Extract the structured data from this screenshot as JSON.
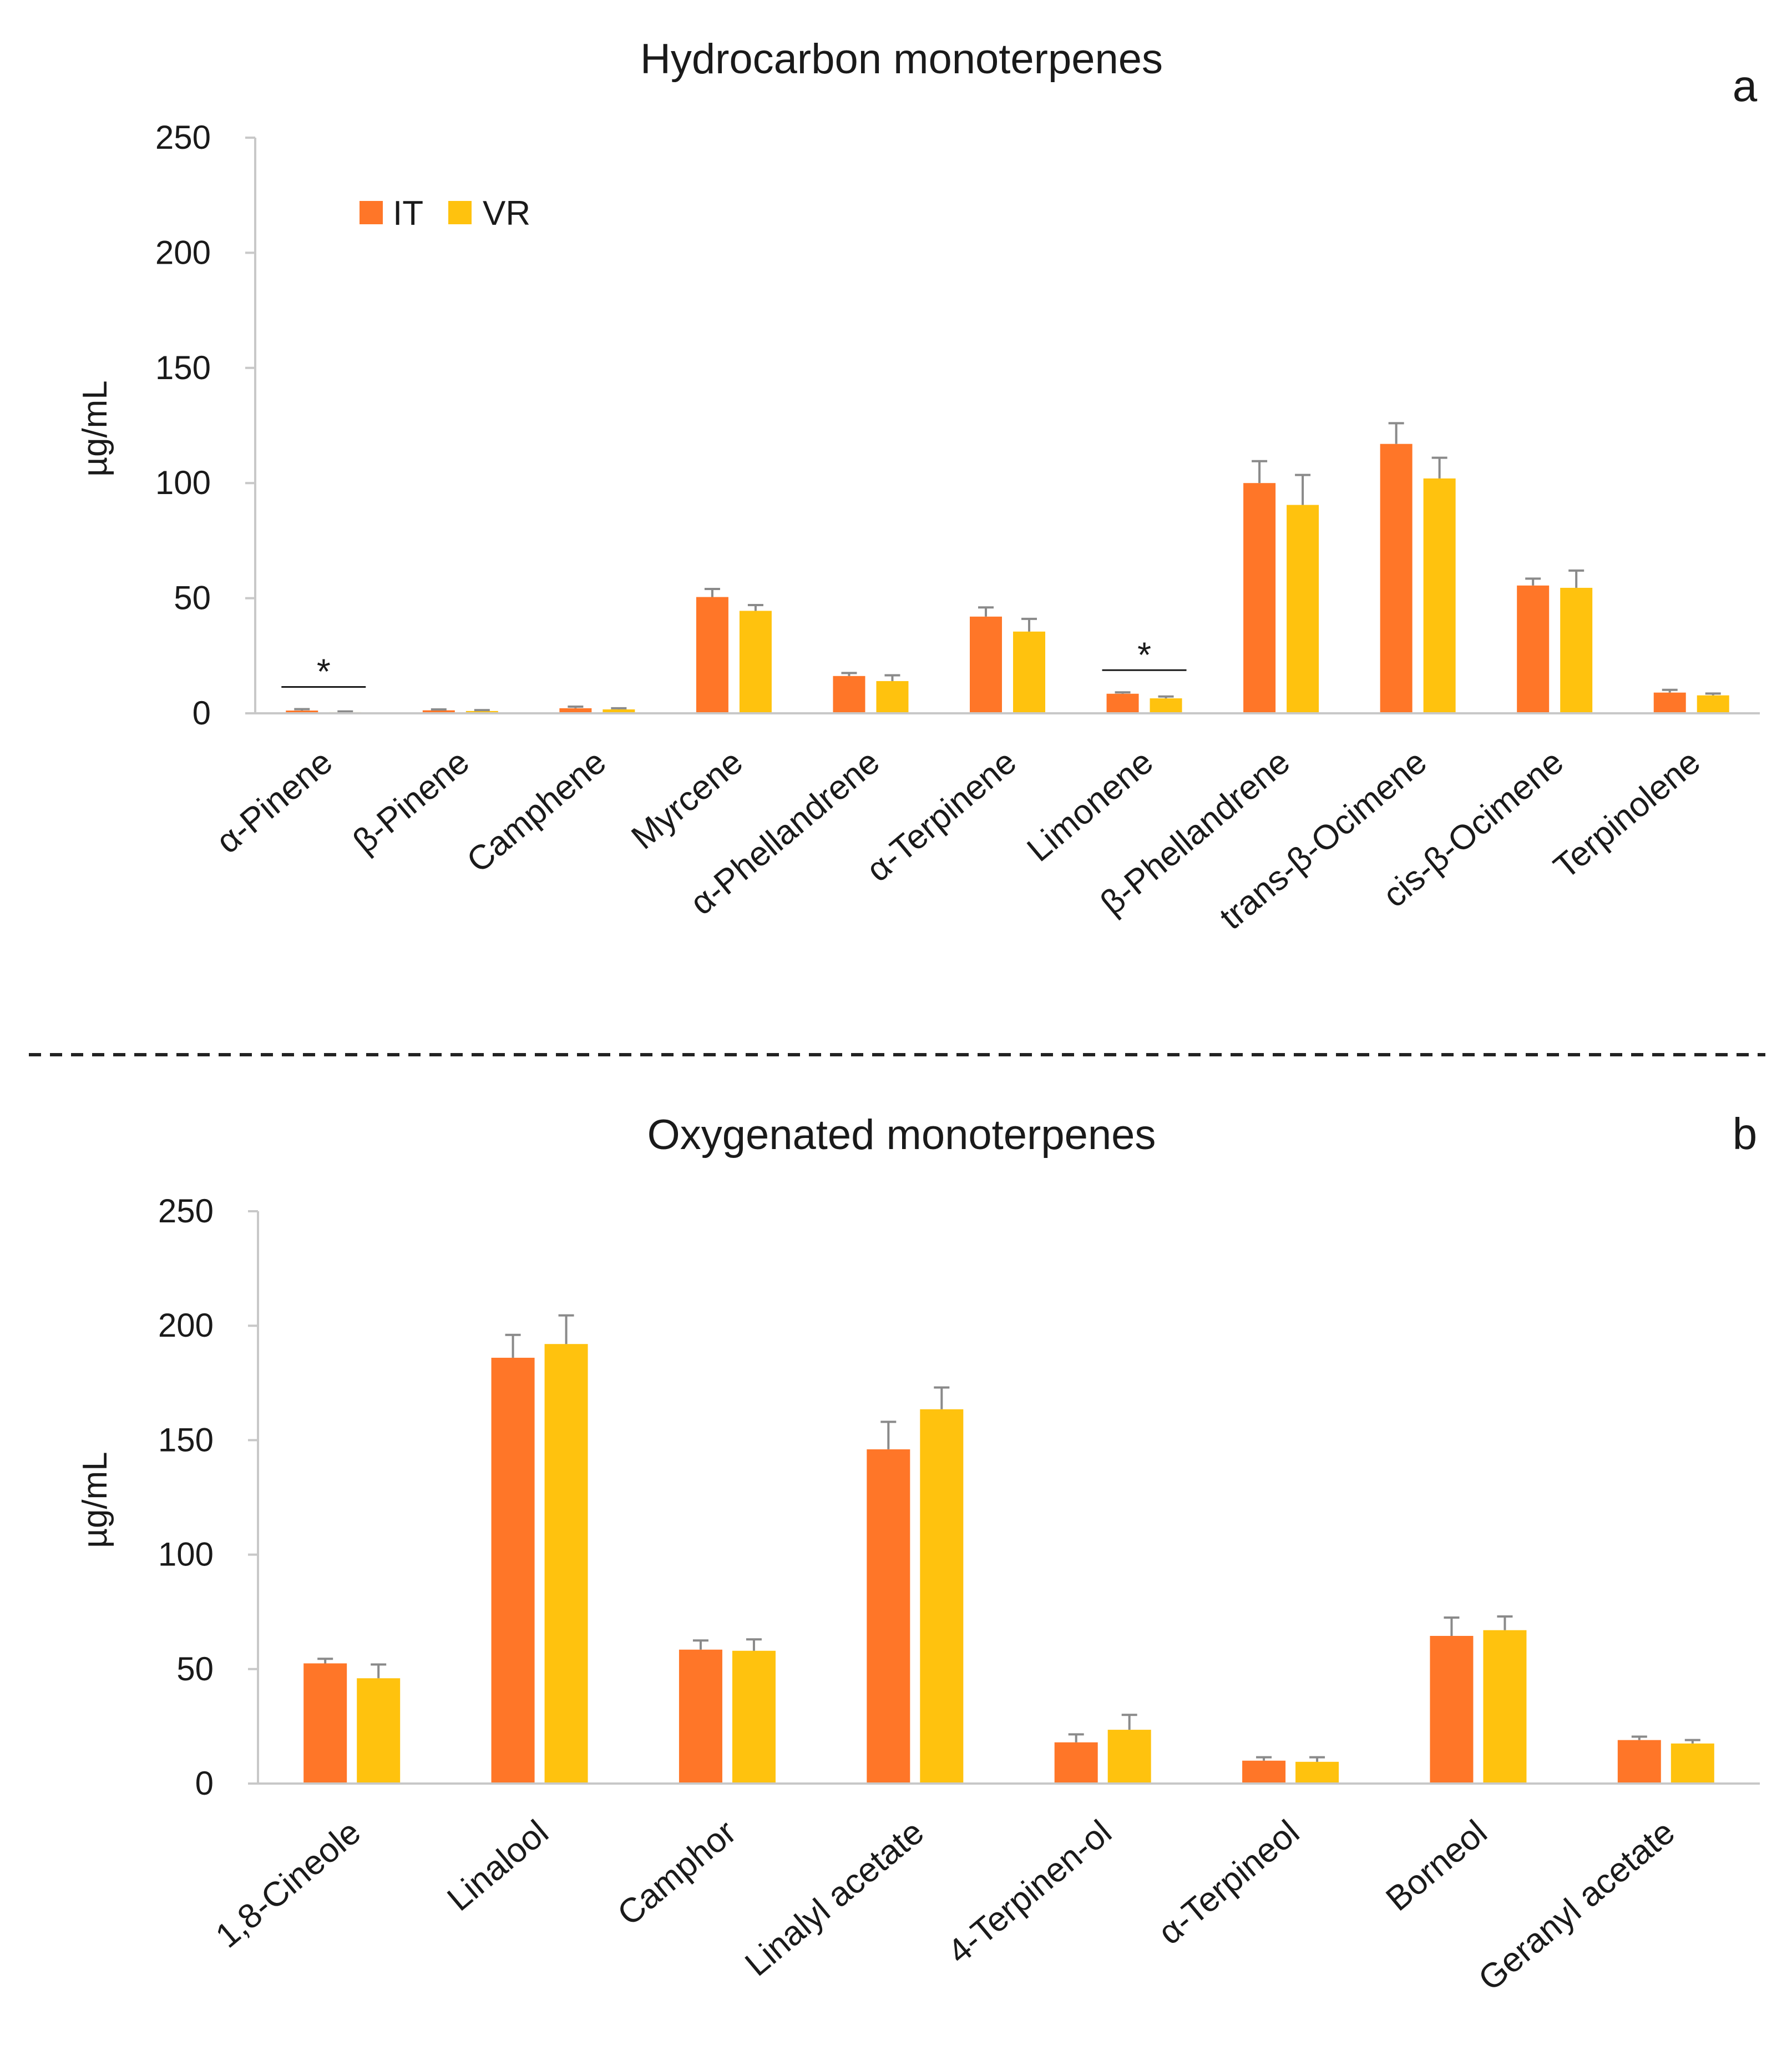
{
  "colors": {
    "IT": "#ff7628",
    "VR": "#ffc20e",
    "axis": "#c8c8c8",
    "error": "#8a8a8a",
    "text": "#1a1a1a"
  },
  "legend": {
    "IT": "IT",
    "VR": "VR",
    "placement": "top-left"
  },
  "divider": {
    "style": "dashed"
  },
  "chart_data": [
    {
      "type": "bar",
      "panel": "a",
      "title": "Hydrocarbon monoterpenes",
      "xlabel": "",
      "ylabel": "µg/mL",
      "ylim": [
        0,
        250
      ],
      "yticks": [
        "0",
        "50",
        "100",
        "150",
        "200",
        "250"
      ],
      "categories": [
        "α-Pinene",
        "β-Pinene",
        "Camphene",
        "Myrcene",
        "α-Phellandrene",
        "α-Terpinene",
        "Limonene",
        "β-Phellandrene",
        "trans-β-Ocimene",
        "cis-β-Ocimene",
        "Terpinolene"
      ],
      "series": [
        {
          "name": "IT",
          "values": [
            1.2,
            1.3,
            2.2,
            50.5,
            16.2,
            42,
            8.5,
            100,
            117,
            55.5,
            9
          ],
          "errors": [
            0.6,
            0.4,
            0.7,
            3.5,
            1.3,
            4,
            0.6,
            9.5,
            9,
            3,
            1.2
          ]
        },
        {
          "name": "VR",
          "values": [
            0.5,
            1.0,
            1.7,
            44.5,
            14,
            35.5,
            6.5,
            90.5,
            102,
            54.5,
            7.8
          ],
          "errors": [
            0.3,
            0.4,
            0.5,
            2.5,
            2.5,
            5.5,
            0.8,
            13,
            9,
            7.5,
            0.8
          ]
        }
      ],
      "significance": [
        {
          "category": "α-Pinene",
          "label": "*"
        },
        {
          "category": "Limonene",
          "label": "*"
        }
      ]
    },
    {
      "type": "bar",
      "panel": "b",
      "title": "Oxygenated monoterpenes",
      "xlabel": "",
      "ylabel": "µg/mL",
      "ylim": [
        0,
        250
      ],
      "yticks": [
        "0",
        "50",
        "100",
        "150",
        "200",
        "250"
      ],
      "categories": [
        "1,8-Cineole",
        "Linalool",
        "Camphor",
        "Linalyl acetate",
        "4-Terpinen-ol",
        "α-Terpineol",
        "Borneol",
        "Geranyl acetate"
      ],
      "series": [
        {
          "name": "IT",
          "values": [
            52.5,
            186,
            58.5,
            146,
            18,
            10,
            64.5,
            19
          ],
          "errors": [
            2,
            10,
            4,
            12,
            3.5,
            1.5,
            8,
            1.5
          ]
        },
        {
          "name": "VR",
          "values": [
            46,
            192,
            58,
            163.5,
            23.5,
            9.5,
            67,
            17.5
          ],
          "errors": [
            6,
            12.5,
            5,
            9.5,
            6.5,
            2,
            6,
            1.5
          ]
        }
      ],
      "significance": []
    }
  ]
}
